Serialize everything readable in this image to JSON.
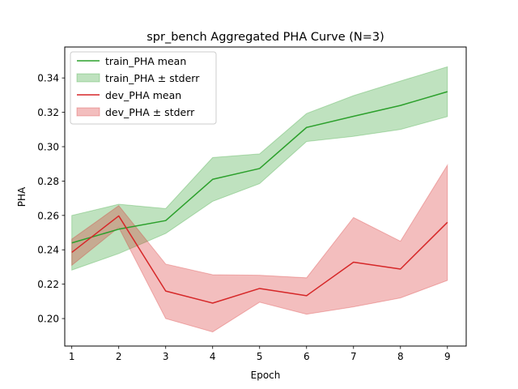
{
  "chart_data": {
    "type": "line",
    "title": "spr_bench Aggregated PHA Curve (N=3)",
    "xlabel": "Epoch",
    "ylabel": "PHA",
    "xlim": [
      0.85,
      9.4
    ],
    "ylim": [
      0.184,
      0.358
    ],
    "x": [
      1,
      2,
      3,
      4,
      5,
      6,
      7,
      8,
      9
    ],
    "x_ticks": [
      1,
      2,
      3,
      4,
      5,
      6,
      7,
      8,
      9
    ],
    "y_ticks": [
      0.2,
      0.22,
      0.24,
      0.26,
      0.28,
      0.3,
      0.32,
      0.34
    ],
    "y_tick_labels": [
      "0.20",
      "0.22",
      "0.24",
      "0.26",
      "0.28",
      "0.30",
      "0.32",
      "0.34"
    ],
    "grid": false,
    "legend_position": "upper-left",
    "series": [
      {
        "name": "train_PHA mean",
        "band_name": "train_PHA ± stderr",
        "color": "#2ca02c",
        "band_color": "#2ca02c",
        "mean": [
          0.244,
          0.252,
          0.257,
          0.281,
          0.2873,
          0.3112,
          0.3177,
          0.324,
          0.332
        ],
        "lower": [
          0.2282,
          0.2378,
          0.2495,
          0.2682,
          0.2785,
          0.303,
          0.306,
          0.31,
          0.3175
        ],
        "upper": [
          0.26,
          0.2665,
          0.264,
          0.2937,
          0.2958,
          0.3193,
          0.3297,
          0.3382,
          0.3465
        ]
      },
      {
        "name": "dev_PHA mean",
        "band_name": "dev_PHA ± stderr",
        "color": "#d62728",
        "band_color": "#d62728",
        "mean": [
          0.2385,
          0.2597,
          0.216,
          0.209,
          0.2175,
          0.2133,
          0.2328,
          0.2288,
          0.256
        ],
        "lower": [
          0.231,
          0.253,
          0.2,
          0.1922,
          0.2095,
          0.2025,
          0.2068,
          0.212,
          0.2222
        ],
        "upper": [
          0.2462,
          0.2657,
          0.2317,
          0.2255,
          0.2252,
          0.2237,
          0.2588,
          0.245,
          0.2893
        ]
      }
    ]
  }
}
